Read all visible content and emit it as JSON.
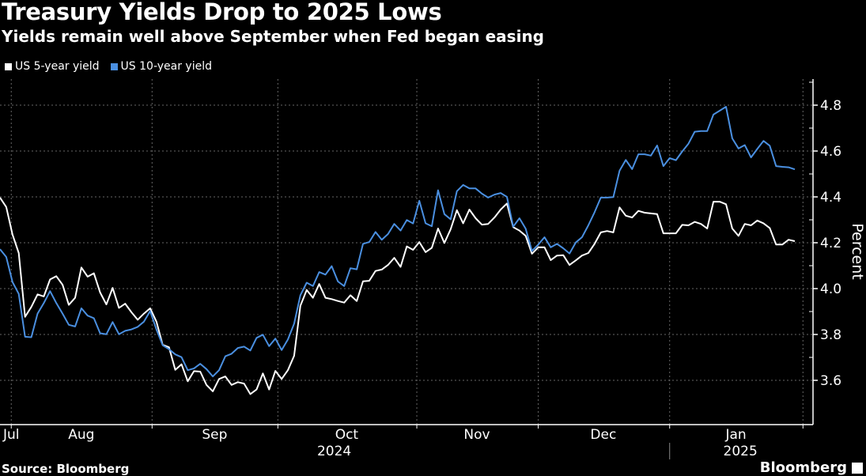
{
  "header": {
    "title": "Treasury Yields Drop to 2025 Lows",
    "subtitle": "Yields remain well above September when Fed began easing"
  },
  "footer": {
    "source": "Source: Bloomberg",
    "brand": "Bloomberg"
  },
  "chart_data": {
    "type": "line",
    "title": "Treasury Yields Drop to 2025 Lows",
    "subtitle": "Yields remain well above September when Fed began easing",
    "xlabel": "",
    "ylabel": "Percent",
    "ylim": [
      3.41,
      4.92
    ],
    "yticks": [
      3.6,
      3.8,
      4.0,
      4.2,
      4.4,
      4.6,
      4.8
    ],
    "ytick_labels": [
      "3.6",
      "3.8",
      "4.0",
      "4.2",
      "4.4",
      "4.6",
      "4.8"
    ],
    "x_unit": "trading-day index",
    "xlim": [
      0,
      127
    ],
    "month_boundaries": [
      1.8,
      24.3,
      44.4,
      66.6,
      86,
      107,
      128.3
    ],
    "month_labels": [
      {
        "label": "Jul",
        "at": 0.6
      },
      {
        "label": "Aug",
        "at": 13
      },
      {
        "label": "Sep",
        "at": 34.3
      },
      {
        "label": "Oct",
        "at": 55.4
      },
      {
        "label": "Nov",
        "at": 76.2
      },
      {
        "label": "Dec",
        "at": 96.4
      },
      {
        "label": "Jan",
        "at": 117.6
      }
    ],
    "year_labels": [
      {
        "label": "2024",
        "at": 53.4
      },
      {
        "label": "2025",
        "at": 118.3
      }
    ],
    "year_boundary": 107,
    "grid": true,
    "legend_position": "top-left",
    "series": [
      {
        "name": "US 5-year yield",
        "color": "#ffffff",
        "values": [
          4.397,
          4.356,
          4.236,
          4.155,
          3.877,
          3.92,
          3.975,
          3.966,
          4.04,
          4.054,
          4.017,
          3.929,
          3.96,
          4.092,
          4.052,
          4.067,
          3.983,
          3.931,
          4.003,
          3.916,
          3.934,
          3.897,
          3.864,
          3.891,
          3.914,
          3.856,
          3.755,
          3.744,
          3.646,
          3.67,
          3.596,
          3.64,
          3.638,
          3.58,
          3.552,
          3.606,
          3.617,
          3.58,
          3.592,
          3.586,
          3.54,
          3.56,
          3.63,
          3.56,
          3.641,
          3.606,
          3.644,
          3.707,
          3.925,
          3.994,
          3.96,
          4.02,
          3.96,
          3.954,
          3.946,
          3.939,
          3.971,
          3.946,
          4.032,
          4.034,
          4.077,
          4.083,
          4.103,
          4.134,
          4.095,
          4.184,
          4.169,
          4.203,
          4.159,
          4.178,
          4.262,
          4.199,
          4.259,
          4.342,
          4.285,
          4.345,
          4.307,
          4.279,
          4.282,
          4.31,
          4.345,
          4.371,
          4.268,
          4.253,
          4.23,
          4.152,
          4.18,
          4.18,
          4.124,
          4.144,
          4.146,
          4.103,
          4.123,
          4.144,
          4.155,
          4.195,
          4.245,
          4.251,
          4.245,
          4.354,
          4.318,
          4.31,
          4.339,
          4.331,
          4.328,
          4.325,
          4.241,
          4.241,
          4.241,
          4.278,
          4.276,
          4.291,
          4.282,
          4.262,
          4.379,
          4.379,
          4.368,
          4.262,
          4.23,
          4.282,
          4.276,
          4.297,
          4.285,
          4.264,
          4.192,
          4.192,
          4.213,
          4.207
        ]
      },
      {
        "name": "US 10-year yield",
        "color": "#4a8fe0",
        "values": [
          4.172,
          4.138,
          4.029,
          3.977,
          3.79,
          3.788,
          3.891,
          3.937,
          3.989,
          3.937,
          3.891,
          3.842,
          3.835,
          3.914,
          3.882,
          3.871,
          3.805,
          3.801,
          3.854,
          3.801,
          3.816,
          3.822,
          3.833,
          3.856,
          3.902,
          3.822,
          3.753,
          3.736,
          3.713,
          3.701,
          3.644,
          3.652,
          3.672,
          3.649,
          3.617,
          3.644,
          3.705,
          3.716,
          3.741,
          3.747,
          3.73,
          3.785,
          3.799,
          3.749,
          3.782,
          3.732,
          3.778,
          3.847,
          3.971,
          4.026,
          4.011,
          4.072,
          4.061,
          4.098,
          4.031,
          4.011,
          4.089,
          4.084,
          4.195,
          4.203,
          4.247,
          4.213,
          4.238,
          4.282,
          4.253,
          4.299,
          4.284,
          4.383,
          4.285,
          4.272,
          4.429,
          4.325,
          4.302,
          4.425,
          4.452,
          4.437,
          4.437,
          4.414,
          4.397,
          4.41,
          4.417,
          4.4,
          4.27,
          4.307,
          4.261,
          4.164,
          4.192,
          4.224,
          4.18,
          4.195,
          4.176,
          4.153,
          4.201,
          4.224,
          4.276,
          4.333,
          4.397,
          4.397,
          4.399,
          4.514,
          4.561,
          4.521,
          4.586,
          4.586,
          4.58,
          4.624,
          4.534,
          4.569,
          4.56,
          4.598,
          4.632,
          4.684,
          4.687,
          4.687,
          4.759,
          4.776,
          4.793,
          4.655,
          4.611,
          4.626,
          4.572,
          4.609,
          4.644,
          4.623,
          4.534,
          4.531,
          4.529,
          4.52
        ]
      }
    ]
  }
}
